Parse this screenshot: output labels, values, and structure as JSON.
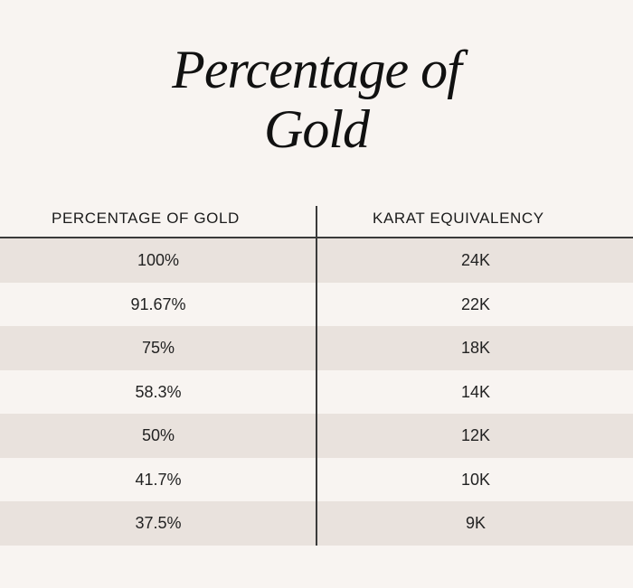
{
  "title": {
    "line1": "Percentage of",
    "line2": "Gold"
  },
  "table": {
    "headers": [
      "PERCENTAGE OF GOLD",
      "KARAT EQUIVALENCY"
    ],
    "rows": [
      [
        "100%",
        "24K"
      ],
      [
        "91.67%",
        "22K"
      ],
      [
        "75%",
        "18K"
      ],
      [
        "58.3%",
        "14K"
      ],
      [
        "50%",
        "12K"
      ],
      [
        "41.7%",
        "10K"
      ],
      [
        "37.5%",
        "9K"
      ]
    ]
  },
  "colors": {
    "background": "#f8f4f1",
    "row_shade": "#e9e2dd",
    "rule": "#3a3a3a",
    "text": "#1b1b1b"
  }
}
